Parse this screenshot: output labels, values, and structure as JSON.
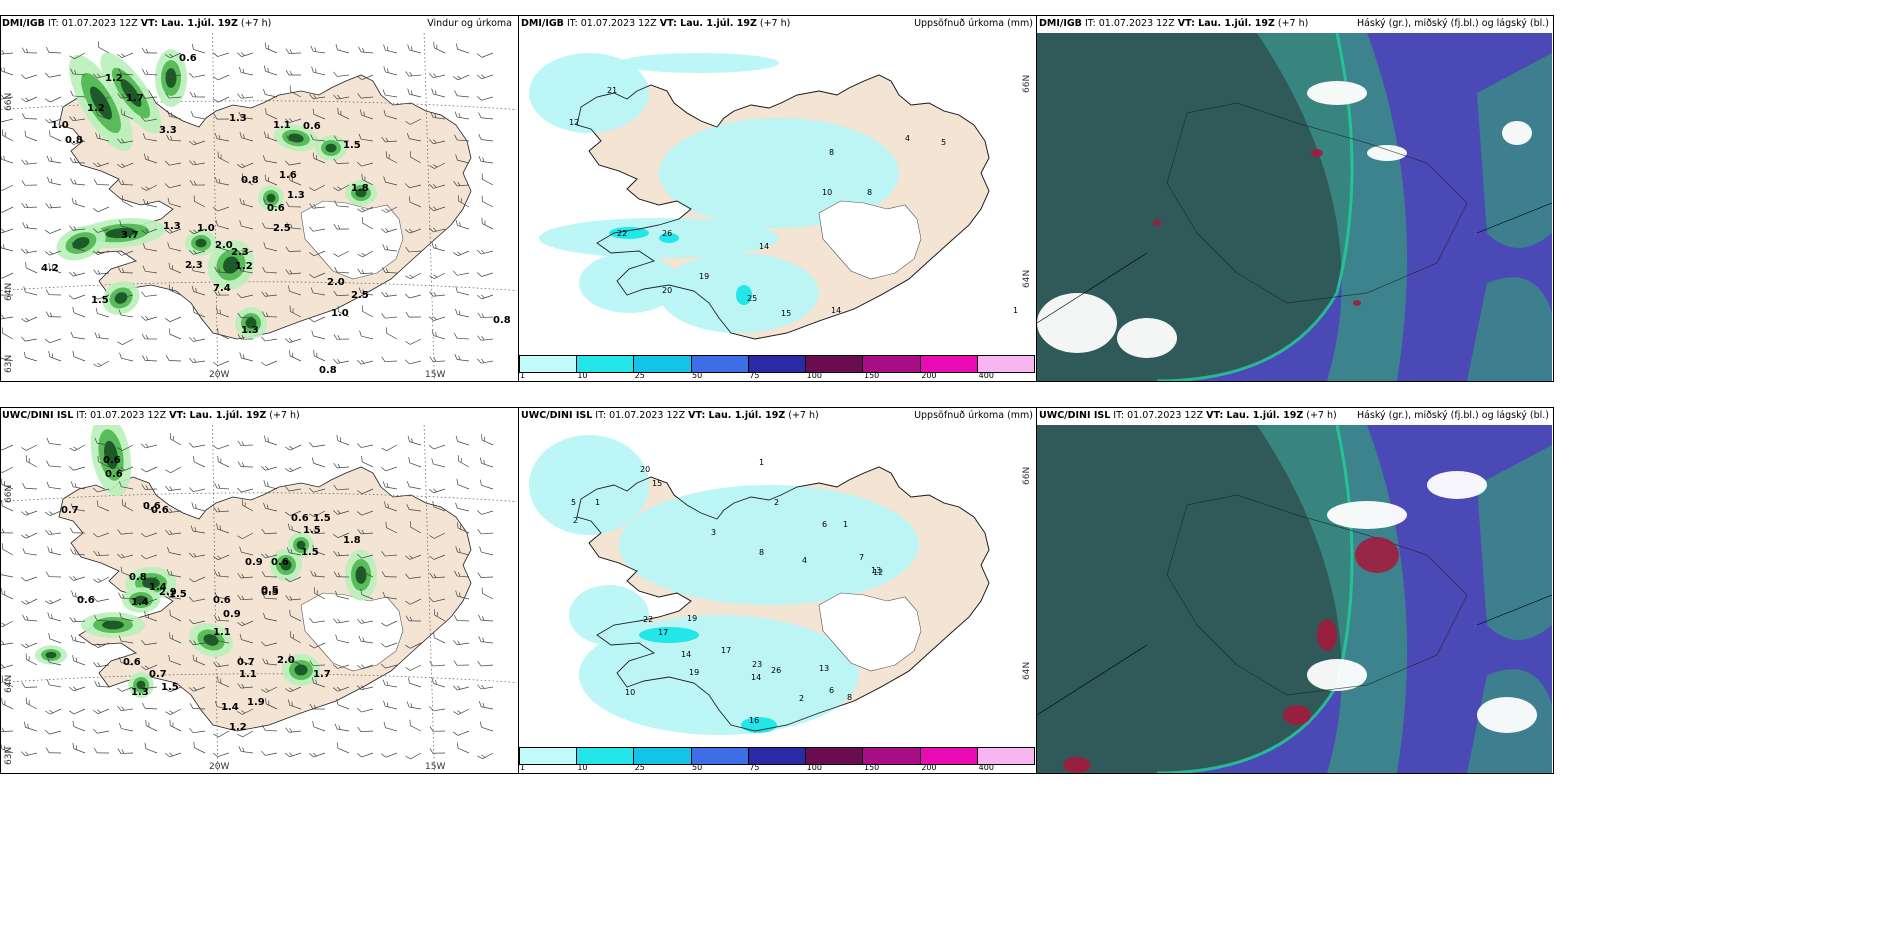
{
  "rows": [
    {
      "model": "DMI/IGB",
      "it_text": " IT: 01.07.2023 12Z ",
      "vt_label": "VT: Lau. 1.júl. 19Z",
      "lead": " (+7 h)",
      "panels": [
        {
          "id": "wind",
          "title": "Vindur og úrkoma"
        },
        {
          "id": "precip",
          "title": "Uppsöfnuð úrkoma (mm)"
        },
        {
          "id": "cloud",
          "title": "Háský (gr.), miðský (fj.bl.) og lágský (bl.)"
        }
      ],
      "wind_values": [
        "0.6",
        "1.2",
        "1.7",
        "1.0",
        "0.8",
        "1.2",
        "3.3",
        "1.3",
        "1.1",
        "0.6",
        "1.5",
        "0.8",
        "1.6",
        "1.3",
        "1.8",
        "0.6",
        "2.5",
        "1.3",
        "1.0",
        "2.0",
        "3.7",
        "2.3",
        "2.3",
        "1.2",
        "7.4",
        "4.2",
        "1.5",
        "2.0",
        "2.5",
        "1.0",
        "1.3",
        "0.8",
        "0.8"
      ],
      "precip_values": [
        "21",
        "12",
        "8",
        "4",
        "5",
        "10",
        "8",
        "22",
        "26",
        "14",
        "19",
        "20",
        "25",
        "15",
        "14",
        "1"
      ]
    },
    {
      "model": "UWC/DINI ISL",
      "it_text": " IT: 01.07.2023 12Z ",
      "vt_label": "VT: Lau. 1.júl. 19Z",
      "lead": " (+7 h)",
      "panels": [
        {
          "id": "wind",
          "title": "Vindur og úrkoma"
        },
        {
          "id": "precip",
          "title": "Uppsöfnuð úrkoma (mm)"
        },
        {
          "id": "cloud",
          "title": "Háský (gr.), miðský (fj.bl.) og lágský (bl.)"
        }
      ],
      "wind_values": [
        "0.6",
        "0.6",
        "0.7",
        "0.6",
        "0.6",
        "1.5",
        "0.6",
        "1.5",
        "1.8",
        "1.5",
        "0.6",
        "0.9",
        "0.8",
        "1.4",
        "2.9",
        "1.4",
        "1.5",
        "0.6",
        "0.5",
        "0.6",
        "0.9",
        "1.1",
        "0.7",
        "1.1",
        "1.9",
        "1.4",
        "1.2",
        "0.6",
        "1.3",
        "2.0",
        "0.7",
        "1.5",
        "0.5",
        "1.7"
      ],
      "precip_values": [
        "20",
        "1",
        "5",
        "1",
        "15",
        "2",
        "2",
        "6",
        "1",
        "3",
        "8",
        "4",
        "7",
        "13",
        "12",
        "22",
        "19",
        "17",
        "14",
        "17",
        "23",
        "26",
        "13",
        "14",
        "10",
        "19",
        "16",
        "2",
        "6",
        "8"
      ]
    }
  ],
  "axis_labels": {
    "lat_top": "66N",
    "lat_mid": "64N",
    "lat_bot": "63N",
    "lon_left": "20W",
    "lon_right": "15W"
  },
  "colorbar": {
    "ticks": [
      "1",
      "10",
      "25",
      "50",
      "75",
      "100",
      "150",
      "200",
      "400"
    ],
    "colors": [
      "#c2fbfb",
      "#22e6ea",
      "#13c4e6",
      "#3d6ee6",
      "#2a2aa6",
      "#6a0c50",
      "#a80c86",
      "#ec0ab4",
      "#f7b5f2"
    ]
  },
  "colors": {
    "land": "#f3e4d4",
    "precip_light": "#b8f5f5",
    "precip_mid": "#22e6ea",
    "rain_light": "#b9efb9",
    "rain_mid": "#52b852",
    "rain_dark": "#1d5a28",
    "cloud_dark": "#2e5c55",
    "cloud_teal": "#3a8d86",
    "cloud_blue": "#4b49b6"
  }
}
